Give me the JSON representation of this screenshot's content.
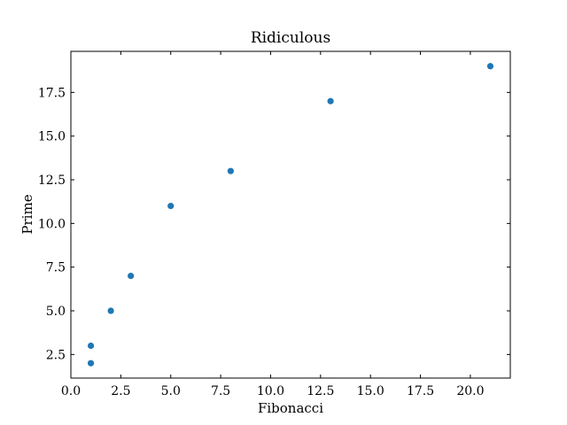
{
  "chart_data": {
    "type": "scatter",
    "title": "Ridiculous",
    "xlabel": "Fibonacci",
    "ylabel": "Prime",
    "x": [
      1,
      1,
      2,
      3,
      5,
      8,
      13,
      21
    ],
    "y": [
      2,
      3,
      5,
      7,
      11,
      13,
      17,
      19
    ],
    "xlim": [
      0.0,
      22.0
    ],
    "ylim": [
      1.15,
      19.85
    ],
    "xticks": [
      0.0,
      2.5,
      5.0,
      7.5,
      10.0,
      12.5,
      15.0,
      17.5,
      20.0
    ],
    "xtick_labels": [
      "0.0",
      "2.5",
      "5.0",
      "7.5",
      "10.0",
      "12.5",
      "15.0",
      "17.5",
      "20.0"
    ],
    "yticks": [
      2.5,
      5.0,
      7.5,
      10.0,
      12.5,
      15.0,
      17.5
    ],
    "ytick_labels": [
      "2.5",
      "5.0",
      "7.5",
      "10.0",
      "12.5",
      "15.0",
      "17.5"
    ],
    "grid": false,
    "tick_direction": "in",
    "marker_color": "#1f77b4"
  }
}
